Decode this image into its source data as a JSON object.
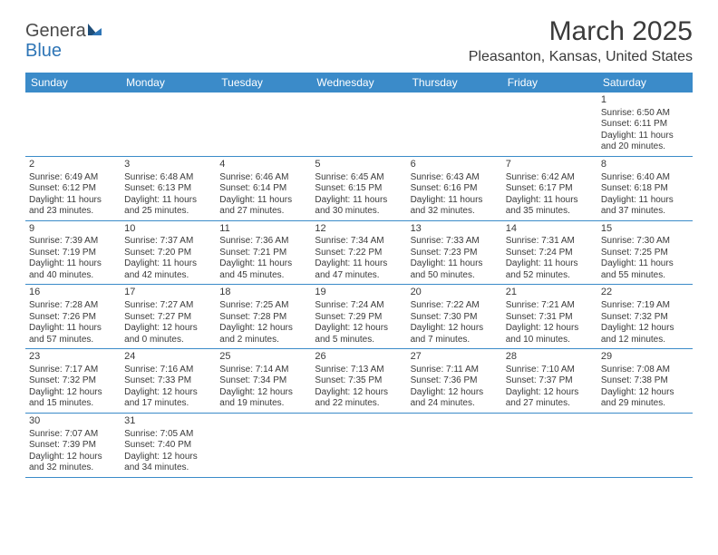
{
  "logo": {
    "text1": "Genera",
    "text2": "Blue"
  },
  "title": "March 2025",
  "location": "Pleasanton, Kansas, United States",
  "header_bg": "#3b8bc9",
  "border_color": "#3b8bc9",
  "weekdays": [
    "Sunday",
    "Monday",
    "Tuesday",
    "Wednesday",
    "Thursday",
    "Friday",
    "Saturday"
  ],
  "weeks": [
    [
      null,
      null,
      null,
      null,
      null,
      null,
      {
        "n": "1",
        "sunrise": "Sunrise: 6:50 AM",
        "sunset": "Sunset: 6:11 PM",
        "daylight": "Daylight: 11 hours and 20 minutes."
      }
    ],
    [
      {
        "n": "2",
        "sunrise": "Sunrise: 6:49 AM",
        "sunset": "Sunset: 6:12 PM",
        "daylight": "Daylight: 11 hours and 23 minutes."
      },
      {
        "n": "3",
        "sunrise": "Sunrise: 6:48 AM",
        "sunset": "Sunset: 6:13 PM",
        "daylight": "Daylight: 11 hours and 25 minutes."
      },
      {
        "n": "4",
        "sunrise": "Sunrise: 6:46 AM",
        "sunset": "Sunset: 6:14 PM",
        "daylight": "Daylight: 11 hours and 27 minutes."
      },
      {
        "n": "5",
        "sunrise": "Sunrise: 6:45 AM",
        "sunset": "Sunset: 6:15 PM",
        "daylight": "Daylight: 11 hours and 30 minutes."
      },
      {
        "n": "6",
        "sunrise": "Sunrise: 6:43 AM",
        "sunset": "Sunset: 6:16 PM",
        "daylight": "Daylight: 11 hours and 32 minutes."
      },
      {
        "n": "7",
        "sunrise": "Sunrise: 6:42 AM",
        "sunset": "Sunset: 6:17 PM",
        "daylight": "Daylight: 11 hours and 35 minutes."
      },
      {
        "n": "8",
        "sunrise": "Sunrise: 6:40 AM",
        "sunset": "Sunset: 6:18 PM",
        "daylight": "Daylight: 11 hours and 37 minutes."
      }
    ],
    [
      {
        "n": "9",
        "sunrise": "Sunrise: 7:39 AM",
        "sunset": "Sunset: 7:19 PM",
        "daylight": "Daylight: 11 hours and 40 minutes."
      },
      {
        "n": "10",
        "sunrise": "Sunrise: 7:37 AM",
        "sunset": "Sunset: 7:20 PM",
        "daylight": "Daylight: 11 hours and 42 minutes."
      },
      {
        "n": "11",
        "sunrise": "Sunrise: 7:36 AM",
        "sunset": "Sunset: 7:21 PM",
        "daylight": "Daylight: 11 hours and 45 minutes."
      },
      {
        "n": "12",
        "sunrise": "Sunrise: 7:34 AM",
        "sunset": "Sunset: 7:22 PM",
        "daylight": "Daylight: 11 hours and 47 minutes."
      },
      {
        "n": "13",
        "sunrise": "Sunrise: 7:33 AM",
        "sunset": "Sunset: 7:23 PM",
        "daylight": "Daylight: 11 hours and 50 minutes."
      },
      {
        "n": "14",
        "sunrise": "Sunrise: 7:31 AM",
        "sunset": "Sunset: 7:24 PM",
        "daylight": "Daylight: 11 hours and 52 minutes."
      },
      {
        "n": "15",
        "sunrise": "Sunrise: 7:30 AM",
        "sunset": "Sunset: 7:25 PM",
        "daylight": "Daylight: 11 hours and 55 minutes."
      }
    ],
    [
      {
        "n": "16",
        "sunrise": "Sunrise: 7:28 AM",
        "sunset": "Sunset: 7:26 PM",
        "daylight": "Daylight: 11 hours and 57 minutes."
      },
      {
        "n": "17",
        "sunrise": "Sunrise: 7:27 AM",
        "sunset": "Sunset: 7:27 PM",
        "daylight": "Daylight: 12 hours and 0 minutes."
      },
      {
        "n": "18",
        "sunrise": "Sunrise: 7:25 AM",
        "sunset": "Sunset: 7:28 PM",
        "daylight": "Daylight: 12 hours and 2 minutes."
      },
      {
        "n": "19",
        "sunrise": "Sunrise: 7:24 AM",
        "sunset": "Sunset: 7:29 PM",
        "daylight": "Daylight: 12 hours and 5 minutes."
      },
      {
        "n": "20",
        "sunrise": "Sunrise: 7:22 AM",
        "sunset": "Sunset: 7:30 PM",
        "daylight": "Daylight: 12 hours and 7 minutes."
      },
      {
        "n": "21",
        "sunrise": "Sunrise: 7:21 AM",
        "sunset": "Sunset: 7:31 PM",
        "daylight": "Daylight: 12 hours and 10 minutes."
      },
      {
        "n": "22",
        "sunrise": "Sunrise: 7:19 AM",
        "sunset": "Sunset: 7:32 PM",
        "daylight": "Daylight: 12 hours and 12 minutes."
      }
    ],
    [
      {
        "n": "23",
        "sunrise": "Sunrise: 7:17 AM",
        "sunset": "Sunset: 7:32 PM",
        "daylight": "Daylight: 12 hours and 15 minutes."
      },
      {
        "n": "24",
        "sunrise": "Sunrise: 7:16 AM",
        "sunset": "Sunset: 7:33 PM",
        "daylight": "Daylight: 12 hours and 17 minutes."
      },
      {
        "n": "25",
        "sunrise": "Sunrise: 7:14 AM",
        "sunset": "Sunset: 7:34 PM",
        "daylight": "Daylight: 12 hours and 19 minutes."
      },
      {
        "n": "26",
        "sunrise": "Sunrise: 7:13 AM",
        "sunset": "Sunset: 7:35 PM",
        "daylight": "Daylight: 12 hours and 22 minutes."
      },
      {
        "n": "27",
        "sunrise": "Sunrise: 7:11 AM",
        "sunset": "Sunset: 7:36 PM",
        "daylight": "Daylight: 12 hours and 24 minutes."
      },
      {
        "n": "28",
        "sunrise": "Sunrise: 7:10 AM",
        "sunset": "Sunset: 7:37 PM",
        "daylight": "Daylight: 12 hours and 27 minutes."
      },
      {
        "n": "29",
        "sunrise": "Sunrise: 7:08 AM",
        "sunset": "Sunset: 7:38 PM",
        "daylight": "Daylight: 12 hours and 29 minutes."
      }
    ],
    [
      {
        "n": "30",
        "sunrise": "Sunrise: 7:07 AM",
        "sunset": "Sunset: 7:39 PM",
        "daylight": "Daylight: 12 hours and 32 minutes."
      },
      {
        "n": "31",
        "sunrise": "Sunrise: 7:05 AM",
        "sunset": "Sunset: 7:40 PM",
        "daylight": "Daylight: 12 hours and 34 minutes."
      },
      null,
      null,
      null,
      null,
      null
    ]
  ]
}
